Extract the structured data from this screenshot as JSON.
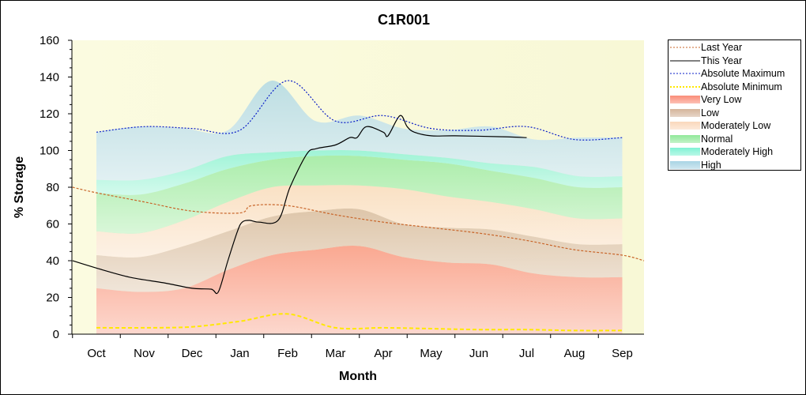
{
  "chart_data": {
    "type": "area",
    "title": "C1R001",
    "xlabel": "Month",
    "ylabel": "% Storage",
    "ylim": [
      0,
      160
    ],
    "yticks": [
      0,
      20,
      40,
      60,
      80,
      100,
      120,
      140,
      160
    ],
    "categories": [
      "Oct",
      "Nov",
      "Dec",
      "Jan",
      "Feb",
      "Mar",
      "Apr",
      "May",
      "Jun",
      "Jul",
      "Aug",
      "Sep"
    ],
    "grid": false,
    "legend_position": "right",
    "bands": [
      {
        "name": "Very Low",
        "color": "#fa8c78",
        "lower": [
          0,
          0,
          0,
          0,
          0,
          0,
          0,
          0,
          0,
          0,
          0,
          0,
          0
        ],
        "upper": [
          25,
          23,
          25,
          35,
          43,
          46,
          48,
          42,
          39,
          38,
          33,
          31,
          31
        ]
      },
      {
        "name": "Low",
        "color": "#d4b49a",
        "lower": [
          25,
          23,
          25,
          35,
          43,
          46,
          48,
          42,
          39,
          38,
          33,
          31,
          31
        ],
        "upper": [
          43,
          42,
          48,
          56,
          64,
          67,
          68,
          60,
          58,
          57,
          53,
          49,
          49
        ]
      },
      {
        "name": "Moderately Low",
        "color": "#fad8bc",
        "lower": [
          43,
          42,
          48,
          56,
          64,
          67,
          68,
          60,
          58,
          57,
          53,
          49,
          49
        ],
        "upper": [
          56,
          55,
          62,
          72,
          80,
          81,
          81,
          79,
          75,
          72,
          68,
          63,
          63
        ]
      },
      {
        "name": "Normal",
        "color": "#90e89a",
        "lower": [
          56,
          55,
          62,
          72,
          80,
          81,
          81,
          79,
          75,
          72,
          68,
          63,
          63
        ],
        "upper": [
          77,
          76,
          82,
          90,
          95,
          97,
          97,
          95,
          93,
          89,
          85,
          80,
          80
        ]
      },
      {
        "name": "Moderately High",
        "color": "#80f2d4",
        "lower": [
          77,
          76,
          82,
          90,
          95,
          97,
          97,
          95,
          93,
          89,
          85,
          80,
          80
        ],
        "upper": [
          84,
          84,
          89,
          97,
          99,
          100,
          100,
          98,
          96,
          93,
          91,
          86,
          86
        ]
      },
      {
        "name": "High",
        "color": "#a8d4e4",
        "lower": [
          84,
          84,
          89,
          97,
          99,
          100,
          100,
          98,
          96,
          93,
          91,
          86,
          86
        ],
        "upper": [
          110,
          113,
          112,
          111,
          138,
          116,
          119,
          112,
          111,
          113,
          106,
          107,
          107
        ]
      }
    ],
    "lines": [
      {
        "name": "Last Year",
        "color": "#c86428",
        "dash": "3,2",
        "points": [
          [
            -0.5,
            80
          ],
          [
            0,
            77
          ],
          [
            1,
            72
          ],
          [
            2,
            67
          ],
          [
            3,
            66
          ],
          [
            3.25,
            70
          ],
          [
            4,
            70
          ],
          [
            5,
            65
          ],
          [
            6,
            61
          ],
          [
            7,
            58
          ],
          [
            8,
            55
          ],
          [
            9,
            51
          ],
          [
            10,
            46
          ],
          [
            11,
            43
          ],
          [
            11.5,
            40
          ]
        ]
      },
      {
        "name": "This Year",
        "color": "#000000",
        "dash": "",
        "points": [
          [
            -0.5,
            40
          ],
          [
            0,
            36
          ],
          [
            0.7,
            31
          ],
          [
            1.4,
            28
          ],
          [
            2,
            25
          ],
          [
            2.4,
            24.5
          ],
          [
            2.55,
            23
          ],
          [
            2.75,
            40
          ],
          [
            2.95,
            56
          ],
          [
            3.05,
            61
          ],
          [
            3.2,
            62
          ],
          [
            3.4,
            61
          ],
          [
            3.8,
            62
          ],
          [
            4.05,
            80
          ],
          [
            4.4,
            98
          ],
          [
            4.6,
            101
          ],
          [
            5,
            103
          ],
          [
            5.3,
            107
          ],
          [
            5.45,
            107
          ],
          [
            5.65,
            113
          ],
          [
            6,
            110
          ],
          [
            6.1,
            108
          ],
          [
            6.35,
            119
          ],
          [
            6.5,
            113
          ],
          [
            6.65,
            110
          ],
          [
            7,
            108
          ],
          [
            7.5,
            108
          ],
          [
            8.5,
            107.5
          ],
          [
            9,
            107
          ]
        ]
      },
      {
        "name": "Absolute Maximum",
        "color": "#0a1ec8",
        "dash": "2,2",
        "points": [
          [
            0,
            110
          ],
          [
            1,
            113
          ],
          [
            2,
            112
          ],
          [
            3,
            111
          ],
          [
            4,
            138
          ],
          [
            5,
            116
          ],
          [
            6,
            119
          ],
          [
            7,
            112
          ],
          [
            8,
            111
          ],
          [
            9,
            113
          ],
          [
            10,
            106
          ],
          [
            11,
            107
          ]
        ]
      },
      {
        "name": "Absolute Minimum",
        "color": "#ffe800",
        "dash": "5,3",
        "width": 2,
        "points": [
          [
            0,
            3.5
          ],
          [
            1,
            3.5
          ],
          [
            2,
            4
          ],
          [
            3,
            7
          ],
          [
            4,
            11
          ],
          [
            5,
            3.5
          ],
          [
            6,
            3.5
          ],
          [
            7,
            3
          ],
          [
            8,
            2.5
          ],
          [
            9,
            2.5
          ],
          [
            10,
            2
          ],
          [
            11,
            2
          ]
        ]
      }
    ],
    "legend": [
      {
        "label": "Last Year",
        "kind": "line",
        "color": "#c86428"
      },
      {
        "label": "This Year",
        "kind": "line",
        "color": "#000000"
      },
      {
        "label": "Absolute Maximum",
        "kind": "line",
        "color": "#0a1ec8"
      },
      {
        "label": "Absolute Minimum",
        "kind": "line",
        "color": "#ffe800"
      },
      {
        "label": "Very Low",
        "kind": "area",
        "color": "#fa8c78"
      },
      {
        "label": "Low",
        "kind": "area",
        "color": "#d4b49a"
      },
      {
        "label": "Moderately Low",
        "kind": "area",
        "color": "#fad8bc"
      },
      {
        "label": "Normal",
        "kind": "area",
        "color": "#90e89a"
      },
      {
        "label": "Moderately High",
        "kind": "area",
        "color": "#80f2d4"
      },
      {
        "label": "High",
        "kind": "area",
        "color": "#a8d4e4"
      }
    ]
  }
}
